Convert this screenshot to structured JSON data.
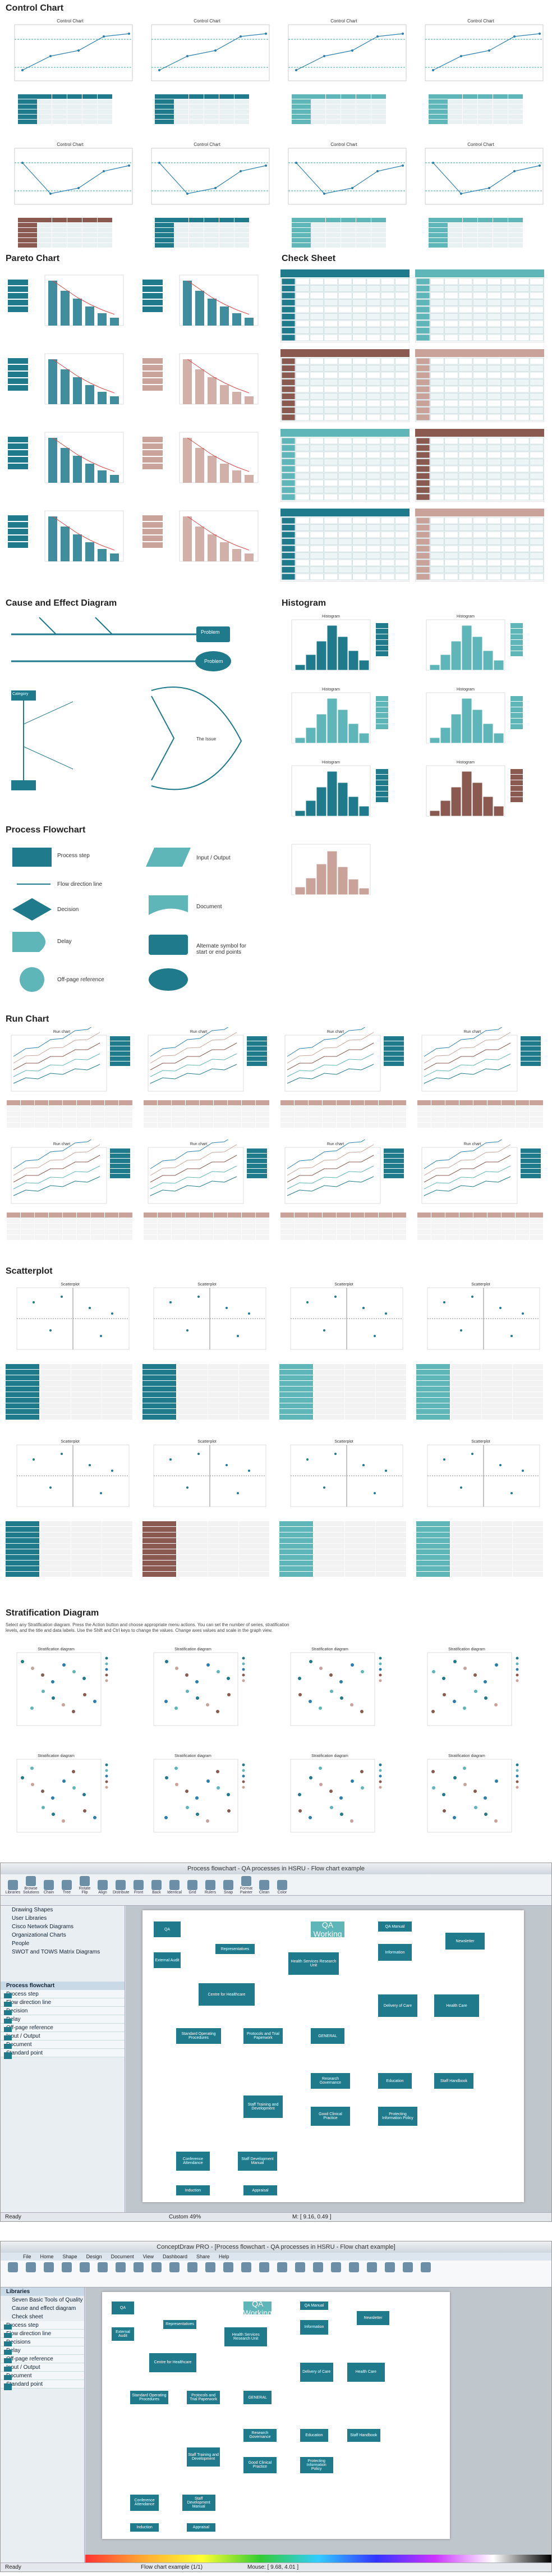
{
  "sections": {
    "control": "Control Chart",
    "pareto": "Pareto Chart",
    "check": "Check Sheet",
    "cause": "Cause and Effect Diagram",
    "histogram": "Histogram",
    "process": "Process Flowchart",
    "run": "Run Chart",
    "scatter": "Scatterplot",
    "strat": "Stratification Diagram"
  },
  "chart_titles": {
    "control": "Control Chart",
    "run": "Run chart",
    "scatter": "Scatterplot",
    "strat": "Stratification diagram",
    "hist": "Histogram"
  },
  "cause": {
    "problem1": "Problem",
    "problem2": "Problem",
    "category": "Category",
    "cause": "Cause",
    "effect": "The Issue"
  },
  "process_shapes": [
    "Process step",
    "Flow direction line",
    "Decision",
    "Delay",
    "Off-page reference",
    "Input / Output",
    "Document",
    "Alternate symbol for start or end points"
  ],
  "strat_note": "Select any Stratification diagram. Press the Action button and choose appropriate menu actions. You can set the number of series, stratification levels, and the title and data labels. Use the Shift and Ctrl keys to change the values. Change axes values and scale in the graph view.",
  "app1": {
    "title": "Process flowchart - QA processes in HSRU - Flow chart example",
    "toolbar": [
      "Libraries",
      "Browse Solutions",
      "Chain",
      "Tree",
      "Rotate Flip",
      "Align",
      "Distribute",
      "Front",
      "Back",
      "Identical",
      "Grid",
      "Rulers",
      "Snap",
      "Format Painter",
      "Clean",
      "Color"
    ],
    "libs": [
      "Drawing Shapes",
      "User Libraries",
      "Cisco Network Diagrams",
      "Organizational Charts",
      "People",
      "SWOT and TOWS Matrix Diagrams"
    ],
    "panel": "Process flowchart",
    "items": [
      "Process step",
      "Flow direction line",
      "Decision",
      "Delay",
      "Off-page reference",
      "Input / Output",
      "Document",
      "Standard point"
    ],
    "status": "Ready",
    "zoom": "Custom 49%",
    "coords": "M: [ 9.16, 0.49 ]"
  },
  "app2": {
    "title": "ConceptDraw PRO - [Process flowchart - QA processes in HSRU - Flow chart example]",
    "tabs": [
      "File",
      "Home",
      "Shape",
      "Design",
      "Document",
      "View",
      "Dashboard",
      "Share",
      "Help"
    ],
    "libs_header": "Libraries",
    "libs": [
      "Seven Basic Tools of Quality",
      "Cause and effect diagram",
      "Check sheet",
      "Control chart",
      "Histogram",
      "Pareto chart",
      "Process flowchart",
      "Run chart"
    ],
    "items": [
      "Process step",
      "Flow direction line",
      "Decisions",
      "Delay",
      "Off-page reference",
      "Input / Output",
      "Document",
      "Standard point"
    ],
    "page": "Flow chart example (1/1)",
    "status": "Ready",
    "mouse": "Mouse: [ 9.68, 4.01 ]"
  },
  "flow_nodes": [
    "QA",
    "Other QA Working Groups",
    "External Audit",
    "Representatives",
    "Health Services Research Unit",
    "QA Manual",
    "Newsletter",
    "Information",
    "Centre for Healthcare",
    "Delivery of Care",
    "Health Care",
    "Standard Operating Procedures",
    "Protocols and Trial Paperwork",
    "GENERAL",
    "Research Governance",
    "Education",
    "Staff Handbook",
    "Staff Training and Development",
    "Good Clinical Practice",
    "Protecting Information Policy",
    "Conference Attendance",
    "Staff Development Manual",
    "Appraisal",
    "Induction"
  ],
  "colors": {
    "teal": "#1f7a8c",
    "lightteal": "#5fb6b8",
    "brown": "#8a5a50",
    "rose": "#c9a29a"
  }
}
